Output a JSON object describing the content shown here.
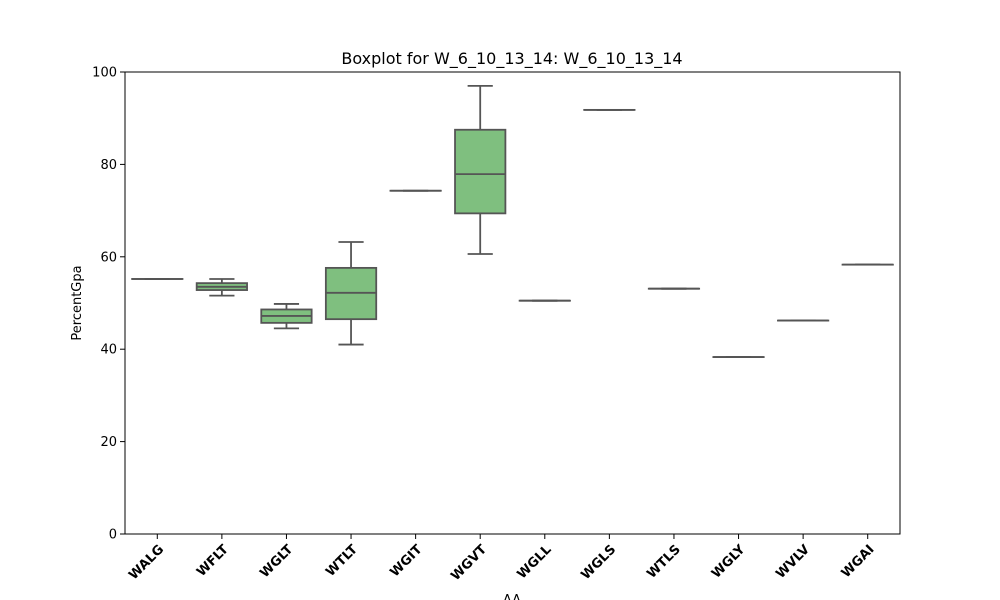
{
  "chart_data": {
    "type": "boxplot",
    "title": "Boxplot for W_6_10_13_14: W_6_10_13_14",
    "xlabel": "AA",
    "ylabel": "PercentGpa",
    "ylim": [
      0,
      100
    ],
    "yticks": [
      0,
      20,
      40,
      60,
      80,
      100
    ],
    "box_color": "#7fbf7f",
    "line_color": "#555555",
    "grid": false,
    "categories": [
      "WALG",
      "WFLT",
      "WGLT",
      "WTLT",
      "WGIT",
      "WGVT",
      "WGLL",
      "WGLS",
      "WTLS",
      "WGLY",
      "WVLV",
      "WGAI"
    ],
    "boxes": [
      {
        "label": "WALG",
        "min": 55.2,
        "q1": 55.2,
        "median": 55.2,
        "q3": 55.2,
        "max": 55.2
      },
      {
        "label": "WFLT",
        "min": 51.6,
        "q1": 52.8,
        "median": 53.5,
        "q3": 54.3,
        "max": 55.2
      },
      {
        "label": "WGLT",
        "min": 44.5,
        "q1": 45.7,
        "median": 47.2,
        "q3": 48.6,
        "max": 49.8
      },
      {
        "label": "WTLT",
        "min": 41.0,
        "q1": 46.5,
        "median": 52.2,
        "q3": 57.6,
        "max": 63.2
      },
      {
        "label": "WGIT",
        "min": 74.3,
        "q1": 74.3,
        "median": 74.3,
        "q3": 74.3,
        "max": 74.3
      },
      {
        "label": "WGVT",
        "min": 60.6,
        "q1": 69.4,
        "median": 77.9,
        "q3": 87.5,
        "max": 97.0
      },
      {
        "label": "WGLL",
        "min": 50.5,
        "q1": 50.5,
        "median": 50.5,
        "q3": 50.5,
        "max": 50.5
      },
      {
        "label": "WGLS",
        "min": 91.8,
        "q1": 91.8,
        "median": 91.8,
        "q3": 91.8,
        "max": 91.8
      },
      {
        "label": "WTLS",
        "min": 53.1,
        "q1": 53.1,
        "median": 53.1,
        "q3": 53.1,
        "max": 53.1
      },
      {
        "label": "WGLY",
        "min": 38.3,
        "q1": 38.3,
        "median": 38.3,
        "q3": 38.3,
        "max": 38.3
      },
      {
        "label": "WVLV",
        "min": 46.2,
        "q1": 46.2,
        "median": 46.2,
        "q3": 46.2,
        "max": 46.2
      },
      {
        "label": "WGAI",
        "min": 58.3,
        "q1": 58.3,
        "median": 58.3,
        "q3": 58.3,
        "max": 58.3
      }
    ]
  }
}
